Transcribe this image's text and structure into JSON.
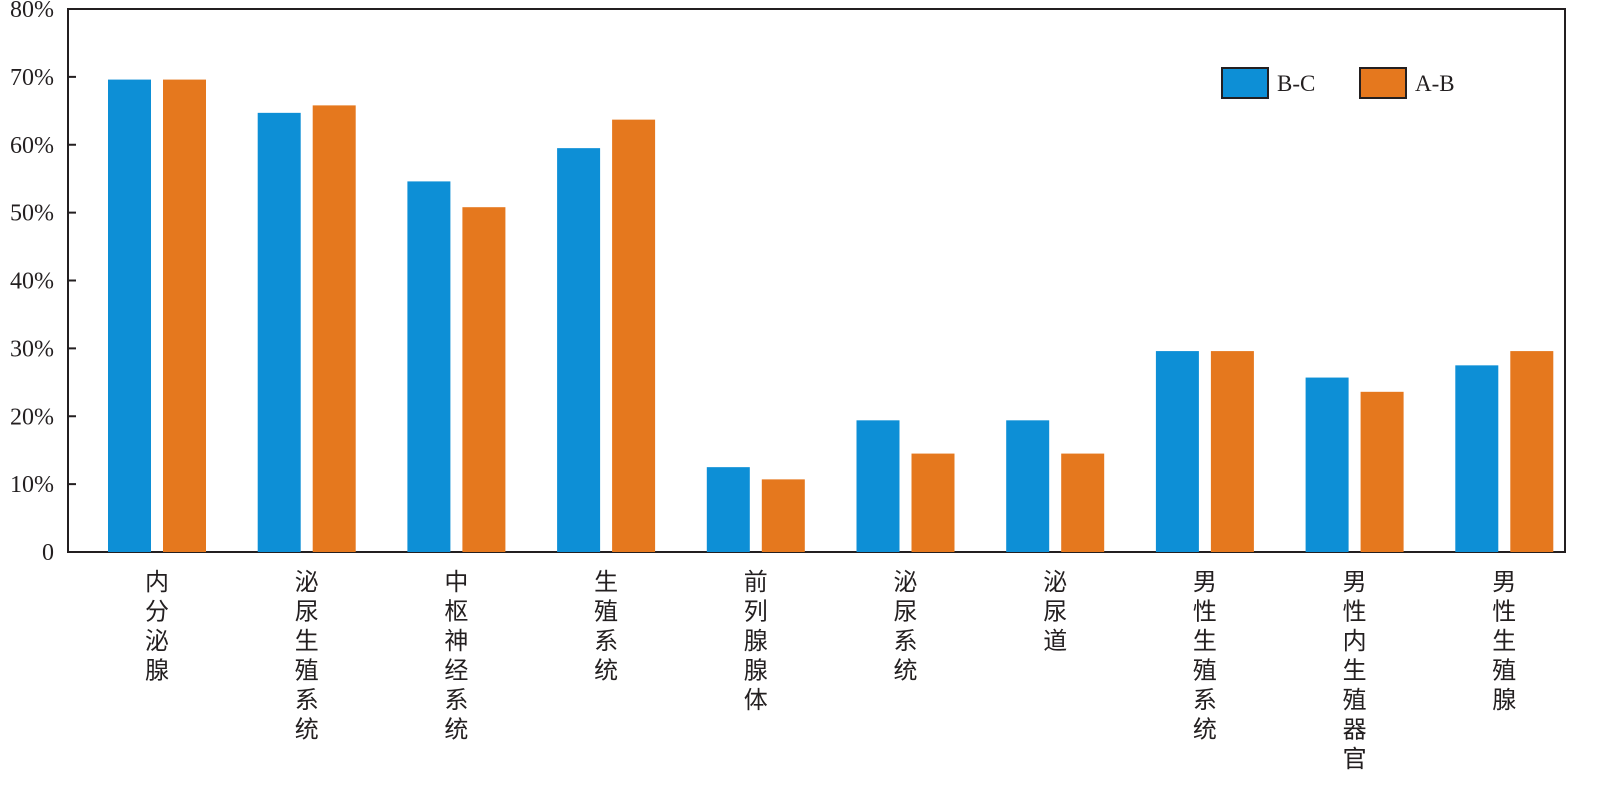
{
  "chart_data": {
    "type": "bar",
    "title": "",
    "xlabel": "",
    "ylabel": "",
    "ylim": [
      0,
      80
    ],
    "yticks": [
      {
        "value": 0,
        "label": "0"
      },
      {
        "value": 10,
        "label": "10%"
      },
      {
        "value": 20,
        "label": "20%"
      },
      {
        "value": 30,
        "label": "30%"
      },
      {
        "value": 40,
        "label": "40%"
      },
      {
        "value": 50,
        "label": "50%"
      },
      {
        "value": 60,
        "label": "60%"
      },
      {
        "value": 70,
        "label": "70%"
      },
      {
        "value": 80,
        "label": "80%"
      }
    ],
    "categories": [
      "内分泌腺",
      "泌尿生殖系统",
      "中枢神经系统",
      "生殖系统",
      "前列腺腺体",
      "泌尿系统",
      "泌尿道",
      "男性生殖系统",
      "男性内生殖器官",
      "男性生殖腺"
    ],
    "series": [
      {
        "name": "B-C",
        "color": "#0d8fd6",
        "values": [
          69.6,
          64.7,
          54.6,
          59.5,
          12.5,
          19.4,
          19.4,
          29.6,
          25.7,
          27.5
        ]
      },
      {
        "name": "A-B",
        "color": "#e5781e",
        "values": [
          69.6,
          65.8,
          50.8,
          63.7,
          10.7,
          14.5,
          14.5,
          29.6,
          23.6,
          29.6
        ]
      }
    ],
    "grid": false,
    "legend_position": "top-right"
  }
}
